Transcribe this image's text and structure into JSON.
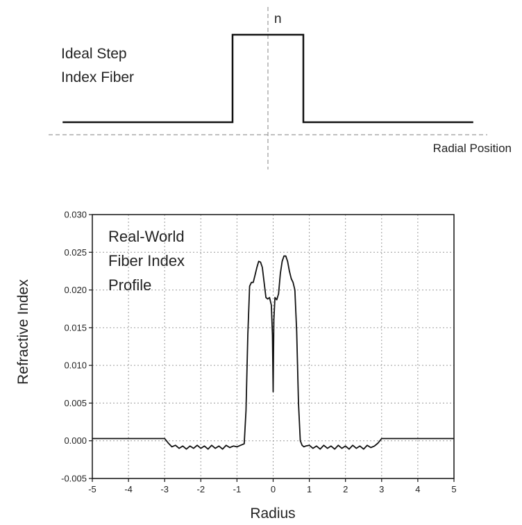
{
  "chart_data": [
    {
      "type": "line",
      "title": "Ideal Step Index Fiber",
      "title_lines": [
        "Ideal Step",
        "Index Fiber"
      ],
      "ylabel": "n",
      "xlabel": "Radial Position",
      "axes": "dashed, no ticks",
      "series": [
        {
          "x": [
            -2.9,
            -0.5,
            -0.5,
            0.5,
            0.5,
            2.9
          ],
          "y": [
            0.2,
            0.2,
            1,
            1,
            0.2,
            0.2
          ]
        }
      ],
      "colors": {
        "line": "#111111",
        "axis": "#999999"
      }
    },
    {
      "type": "line",
      "annotation": "Real-World Fiber Index Profile",
      "annotation_lines": [
        "Real-World",
        "Fiber Index",
        "Profile"
      ],
      "xlabel": "Radius",
      "ylabel": "Refractive Index",
      "xlim": [
        -5,
        5
      ],
      "ylim": [
        -0.005,
        0.03
      ],
      "xticks": [
        "-5",
        "-4",
        "-3",
        "-2",
        "-1",
        "0",
        "1",
        "2",
        "3",
        "4",
        "5"
      ],
      "yticks": [
        "-0.005",
        "0.000",
        "0.005",
        "0.010",
        "0.015",
        "0.020",
        "0.025",
        "0.030"
      ],
      "grid": true,
      "series": [
        {
          "x": [
            -5,
            -3,
            -2.9,
            -2.8,
            -2.7,
            -2.6,
            -2.5,
            -2.4,
            -2.3,
            -2.2,
            -2.1,
            -2.0,
            -1.9,
            -1.8,
            -1.7,
            -1.6,
            -1.5,
            -1.4,
            -1.3,
            -1.2,
            -1.1,
            -1.0,
            -0.9,
            -0.8,
            -0.75,
            -0.7,
            -0.65,
            -0.6,
            -0.55,
            -0.5,
            -0.45,
            -0.4,
            -0.35,
            -0.3,
            -0.25,
            -0.2,
            -0.15,
            -0.1,
            -0.05,
            -0.02,
            0,
            0.02,
            0.05,
            0.1,
            0.15,
            0.2,
            0.25,
            0.3,
            0.35,
            0.4,
            0.45,
            0.5,
            0.55,
            0.6,
            0.65,
            0.7,
            0.75,
            0.8,
            0.85,
            0.9,
            1.0,
            1.1,
            1.2,
            1.3,
            1.4,
            1.5,
            1.6,
            1.7,
            1.8,
            1.9,
            2.0,
            2.1,
            2.2,
            2.3,
            2.4,
            2.5,
            2.6,
            2.7,
            2.8,
            2.9,
            3.0,
            5
          ],
          "y": [
            0.0003,
            0.0003,
            -0.0003,
            -0.0008,
            -0.0006,
            -0.001,
            -0.0007,
            -0.0011,
            -0.0007,
            -0.001,
            -0.0006,
            -0.001,
            -0.0007,
            -0.0011,
            -0.0006,
            -0.001,
            -0.0007,
            -0.0011,
            -0.0006,
            -0.0009,
            -0.0007,
            -0.0008,
            -0.0006,
            -0.0004,
            0.004,
            0.014,
            0.0205,
            0.021,
            0.021,
            0.022,
            0.023,
            0.0238,
            0.0237,
            0.023,
            0.021,
            0.019,
            0.0188,
            0.019,
            0.018,
            0.014,
            0.0065,
            0.016,
            0.019,
            0.0187,
            0.0195,
            0.0222,
            0.0238,
            0.0245,
            0.0245,
            0.0238,
            0.0225,
            0.0215,
            0.021,
            0.02,
            0.0145,
            0.005,
            0.0,
            -0.0006,
            -0.0008,
            -0.0007,
            -0.0006,
            -0.001,
            -0.0007,
            -0.0011,
            -0.0006,
            -0.001,
            -0.0007,
            -0.0011,
            -0.0006,
            -0.001,
            -0.0007,
            -0.0011,
            -0.0006,
            -0.001,
            -0.0007,
            -0.0011,
            -0.0006,
            -0.0009,
            -0.0007,
            -0.0003,
            0.0003,
            0.0003
          ]
        }
      ],
      "colors": {
        "line": "#111111",
        "grid": "#9a9a9a"
      }
    }
  ]
}
